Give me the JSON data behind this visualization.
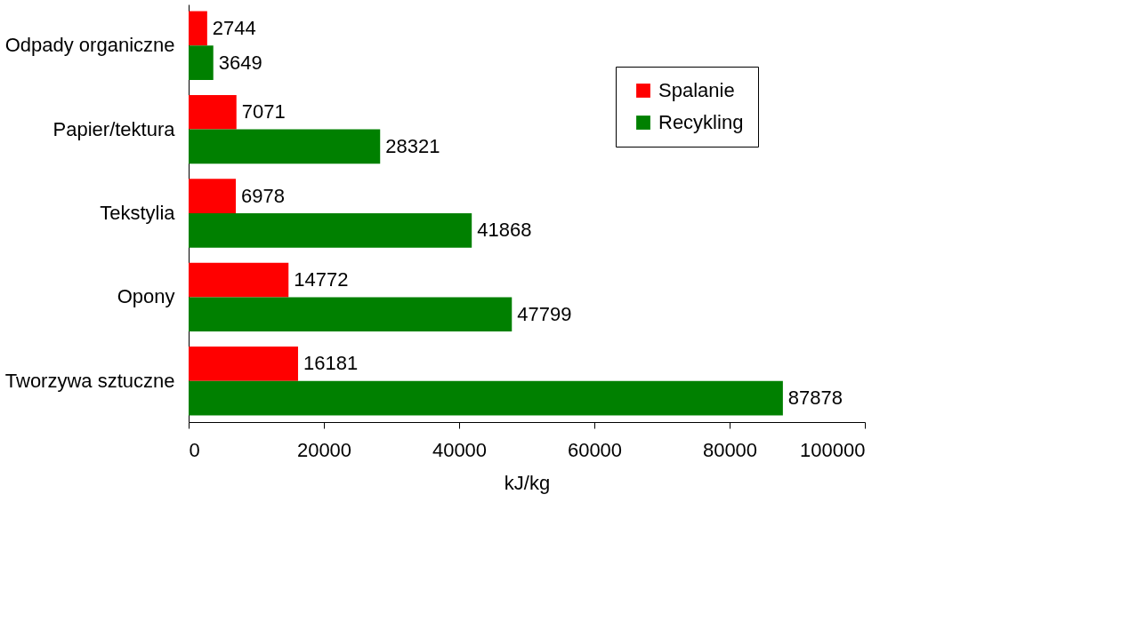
{
  "chart_data": {
    "type": "bar",
    "orientation": "horizontal",
    "xlabel": "kJ/kg",
    "categories": [
      "Odpady organiczne",
      "Papier/tektura",
      "Tekstylia",
      "Opony",
      "Tworzywa sztuczne"
    ],
    "series": [
      {
        "name": "Spalanie",
        "color": "#ff0000",
        "values": [
          2744,
          7071,
          6978,
          14772,
          16181
        ]
      },
      {
        "name": "Recykling",
        "color": "#008000",
        "values": [
          3649,
          28321,
          41868,
          47799,
          87878
        ]
      }
    ],
    "xlim": [
      0,
      100000
    ],
    "xticks": [
      0,
      20000,
      40000,
      60000,
      80000,
      100000
    ],
    "data_labels": true,
    "legend": "top right",
    "grid": false
  }
}
